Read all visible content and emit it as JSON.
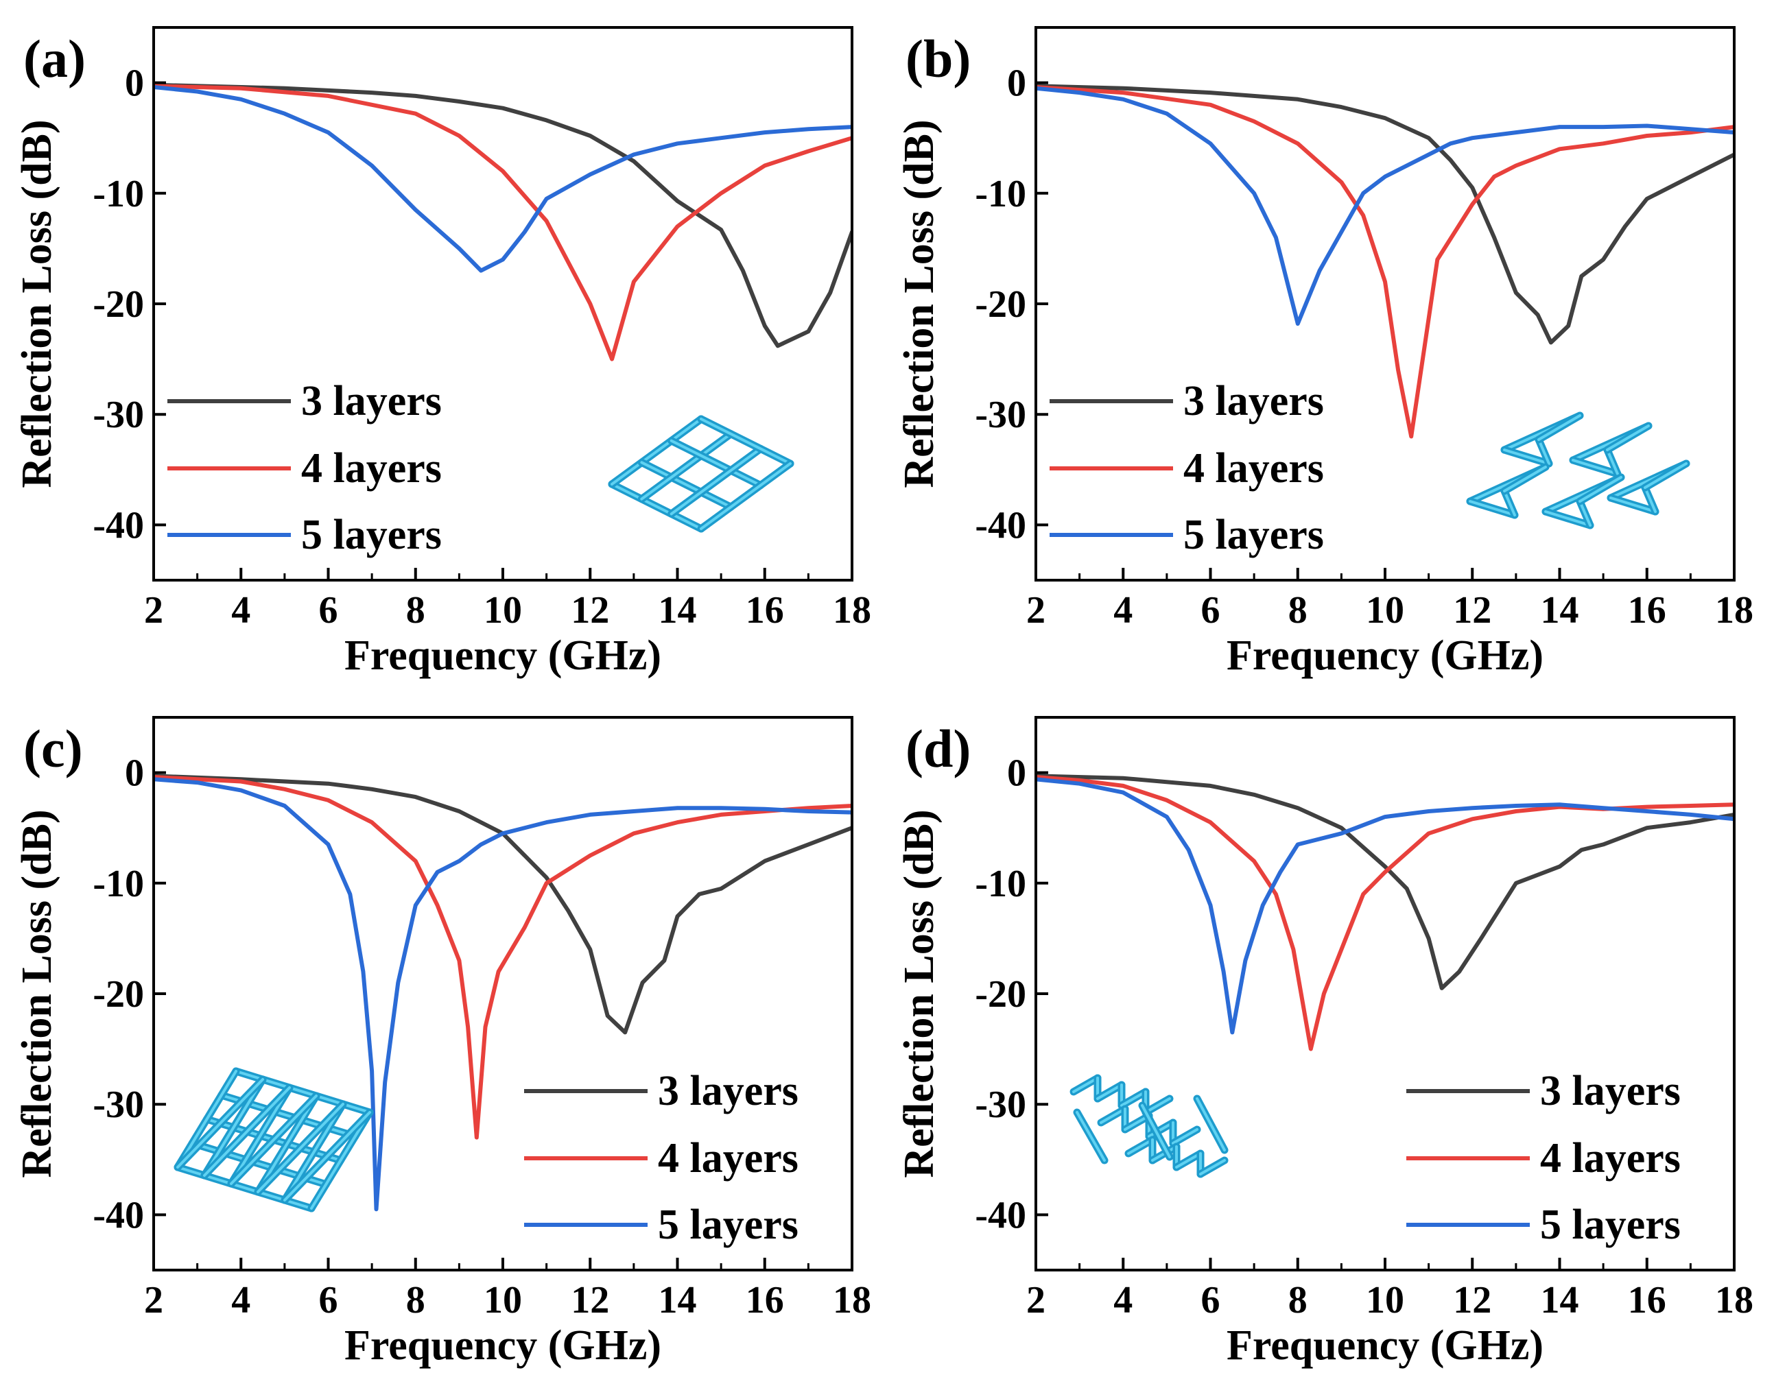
{
  "chart_data": [
    {
      "type": "line",
      "panel_label": "(a)",
      "xlabel": "Frequency (GHz)",
      "ylabel": "Reflection Loss (dB)",
      "xlim": [
        2,
        18
      ],
      "ylim": [
        -45,
        5
      ],
      "xticks": [
        2,
        4,
        6,
        8,
        10,
        12,
        14,
        16,
        18
      ],
      "yticks": [
        0,
        -10,
        -20,
        -30,
        -40
      ],
      "legend_position": "lower-left",
      "icon": "square-lattice-icon",
      "series": [
        {
          "name": "3 layers",
          "color": "#404040",
          "points": [
            [
              2,
              -0.2
            ],
            [
              3,
              -0.3
            ],
            [
              4,
              -0.4
            ],
            [
              5,
              -0.5
            ],
            [
              6,
              -0.7
            ],
            [
              7,
              -0.9
            ],
            [
              8,
              -1.2
            ],
            [
              9,
              -1.7
            ],
            [
              10,
              -2.3
            ],
            [
              11,
              -3.4
            ],
            [
              12,
              -4.8
            ],
            [
              13,
              -7.1
            ],
            [
              14,
              -10.7
            ],
            [
              15,
              -13.3
            ],
            [
              15.5,
              -17
            ],
            [
              16,
              -22
            ],
            [
              16.3,
              -23.8
            ],
            [
              17,
              -22.5
            ],
            [
              17.5,
              -19
            ],
            [
              18,
              -13.5
            ]
          ]
        },
        {
          "name": "4 layers",
          "color": "#e8413c",
          "points": [
            [
              2,
              -0.3
            ],
            [
              4,
              -0.5
            ],
            [
              6,
              -1.2
            ],
            [
              8,
              -2.8
            ],
            [
              9,
              -4.8
            ],
            [
              10,
              -8
            ],
            [
              11,
              -12.5
            ],
            [
              12,
              -20
            ],
            [
              12.5,
              -25
            ],
            [
              13,
              -18
            ],
            [
              14,
              -13
            ],
            [
              15,
              -10
            ],
            [
              16,
              -7.5
            ],
            [
              17,
              -6.2
            ],
            [
              18,
              -5
            ]
          ]
        },
        {
          "name": "5 layers",
          "color": "#2b6bd6",
          "points": [
            [
              2,
              -0.4
            ],
            [
              3,
              -0.8
            ],
            [
              4,
              -1.5
            ],
            [
              5,
              -2.8
            ],
            [
              6,
              -4.5
            ],
            [
              7,
              -7.5
            ],
            [
              8,
              -11.5
            ],
            [
              9,
              -15
            ],
            [
              9.5,
              -17
            ],
            [
              10,
              -16
            ],
            [
              10.5,
              -13.5
            ],
            [
              11,
              -10.5
            ],
            [
              12,
              -8.3
            ],
            [
              13,
              -6.5
            ],
            [
              14,
              -5.5
            ],
            [
              15,
              -5
            ],
            [
              16,
              -4.5
            ],
            [
              17,
              -4.2
            ],
            [
              18,
              -4
            ]
          ]
        }
      ]
    },
    {
      "type": "line",
      "panel_label": "(b)",
      "xlabel": "Frequency (GHz)",
      "ylabel": "Reflection Loss (dB)",
      "xlim": [
        2,
        18
      ],
      "ylim": [
        -45,
        5
      ],
      "xticks": [
        2,
        4,
        6,
        8,
        10,
        12,
        14,
        16,
        18
      ],
      "yticks": [
        0,
        -10,
        -20,
        -30,
        -40
      ],
      "legend_position": "lower-left",
      "icon": "arrowhead-lattice-icon",
      "series": [
        {
          "name": "3 layers",
          "color": "#404040",
          "points": [
            [
              2,
              -0.3
            ],
            [
              4,
              -0.5
            ],
            [
              6,
              -0.9
            ],
            [
              8,
              -1.5
            ],
            [
              9,
              -2.2
            ],
            [
              10,
              -3.2
            ],
            [
              11,
              -5
            ],
            [
              11.5,
              -7
            ],
            [
              12,
              -9.5
            ],
            [
              12.5,
              -14
            ],
            [
              13,
              -19
            ],
            [
              13.5,
              -21
            ],
            [
              13.8,
              -23.5
            ],
            [
              14.2,
              -22
            ],
            [
              14.5,
              -17.5
            ],
            [
              15,
              -16
            ],
            [
              15.5,
              -13
            ],
            [
              16,
              -10.5
            ],
            [
              17,
              -8.5
            ],
            [
              18,
              -6.5
            ]
          ]
        },
        {
          "name": "4 layers",
          "color": "#e8413c",
          "points": [
            [
              2,
              -0.4
            ],
            [
              4,
              -0.9
            ],
            [
              6,
              -2
            ],
            [
              7,
              -3.5
            ],
            [
              8,
              -5.5
            ],
            [
              9,
              -9
            ],
            [
              9.5,
              -12
            ],
            [
              10,
              -18
            ],
            [
              10.3,
              -26
            ],
            [
              10.6,
              -32
            ],
            [
              10.9,
              -24
            ],
            [
              11.2,
              -16
            ],
            [
              12,
              -11
            ],
            [
              12.5,
              -8.5
            ],
            [
              13,
              -7.5
            ],
            [
              14,
              -6
            ],
            [
              15,
              -5.5
            ],
            [
              16,
              -4.8
            ],
            [
              17,
              -4.5
            ],
            [
              18,
              -4
            ]
          ]
        },
        {
          "name": "5 layers",
          "color": "#2b6bd6",
          "points": [
            [
              2,
              -0.5
            ],
            [
              3,
              -0.9
            ],
            [
              4,
              -1.5
            ],
            [
              5,
              -2.8
            ],
            [
              6,
              -5.5
            ],
            [
              7,
              -10
            ],
            [
              7.5,
              -14
            ],
            [
              8,
              -21.8
            ],
            [
              8.5,
              -17
            ],
            [
              9,
              -13.5
            ],
            [
              9.5,
              -10
            ],
            [
              10,
              -8.5
            ],
            [
              11,
              -6.5
            ],
            [
              11.5,
              -5.5
            ],
            [
              12,
              -5
            ],
            [
              13,
              -4.5
            ],
            [
              14,
              -4
            ],
            [
              15,
              -4
            ],
            [
              16,
              -3.9
            ],
            [
              17,
              -4.2
            ],
            [
              18,
              -4.5
            ]
          ]
        }
      ]
    },
    {
      "type": "line",
      "panel_label": "(c)",
      "xlabel": "Frequency (GHz)",
      "ylabel": "Reflection Loss (dB)",
      "xlim": [
        2,
        18
      ],
      "ylim": [
        -45,
        5
      ],
      "xticks": [
        2,
        4,
        6,
        8,
        10,
        12,
        14,
        16,
        18
      ],
      "yticks": [
        0,
        -10,
        -20,
        -30,
        -40
      ],
      "legend_position": "lower-right",
      "icon": "truss-lattice-icon",
      "series": [
        {
          "name": "3 layers",
          "color": "#404040",
          "points": [
            [
              2,
              -0.3
            ],
            [
              4,
              -0.6
            ],
            [
              6,
              -1
            ],
            [
              7,
              -1.5
            ],
            [
              8,
              -2.2
            ],
            [
              9,
              -3.5
            ],
            [
              10,
              -5.5
            ],
            [
              11,
              -9.5
            ],
            [
              11.5,
              -12.5
            ],
            [
              12,
              -16
            ],
            [
              12.4,
              -22
            ],
            [
              12.8,
              -23.5
            ],
            [
              13.2,
              -19
            ],
            [
              13.7,
              -17
            ],
            [
              14,
              -13
            ],
            [
              14.5,
              -11
            ],
            [
              15,
              -10.5
            ],
            [
              16,
              -8
            ],
            [
              17,
              -6.5
            ],
            [
              18,
              -5
            ]
          ]
        },
        {
          "name": "4 layers",
          "color": "#e8413c",
          "points": [
            [
              2,
              -0.4
            ],
            [
              4,
              -0.8
            ],
            [
              5,
              -1.5
            ],
            [
              6,
              -2.5
            ],
            [
              7,
              -4.5
            ],
            [
              8,
              -8
            ],
            [
              8.5,
              -12
            ],
            [
              9,
              -17
            ],
            [
              9.2,
              -23
            ],
            [
              9.4,
              -33
            ],
            [
              9.6,
              -23
            ],
            [
              9.9,
              -18
            ],
            [
              10.5,
              -14
            ],
            [
              11,
              -10
            ],
            [
              12,
              -7.5
            ],
            [
              13,
              -5.5
            ],
            [
              14,
              -4.5
            ],
            [
              15,
              -3.8
            ],
            [
              16,
              -3.5
            ],
            [
              17,
              -3.2
            ],
            [
              18,
              -3
            ]
          ]
        },
        {
          "name": "5 layers",
          "color": "#2b6bd6",
          "points": [
            [
              2,
              -0.6
            ],
            [
              3,
              -0.9
            ],
            [
              4,
              -1.6
            ],
            [
              5,
              -3
            ],
            [
              6,
              -6.5
            ],
            [
              6.5,
              -11
            ],
            [
              6.8,
              -18
            ],
            [
              7.0,
              -27
            ],
            [
              7.1,
              -39.5
            ],
            [
              7.3,
              -28
            ],
            [
              7.6,
              -19
            ],
            [
              8,
              -12
            ],
            [
              8.5,
              -9
            ],
            [
              9,
              -8
            ],
            [
              9.5,
              -6.5
            ],
            [
              10,
              -5.5
            ],
            [
              11,
              -4.5
            ],
            [
              12,
              -3.8
            ],
            [
              13,
              -3.5
            ],
            [
              14,
              -3.2
            ],
            [
              15,
              -3.2
            ],
            [
              16,
              -3.3
            ],
            [
              17,
              -3.5
            ],
            [
              18,
              -3.6
            ]
          ]
        }
      ]
    },
    {
      "type": "line",
      "panel_label": "(d)",
      "xlabel": "Frequency (GHz)",
      "ylabel": "Reflection Loss (dB)",
      "xlim": [
        2,
        18
      ],
      "ylim": [
        -45,
        5
      ],
      "xticks": [
        2,
        4,
        6,
        8,
        10,
        12,
        14,
        16,
        18
      ],
      "yticks": [
        0,
        -10,
        -20,
        -30,
        -40
      ],
      "legend_position": "lower-right",
      "icon": "zigzag-lattice-icon",
      "series": [
        {
          "name": "3 layers",
          "color": "#404040",
          "points": [
            [
              2,
              -0.3
            ],
            [
              4,
              -0.5
            ],
            [
              6,
              -1.2
            ],
            [
              7,
              -2
            ],
            [
              8,
              -3.2
            ],
            [
              9,
              -5
            ],
            [
              10,
              -8.5
            ],
            [
              10.5,
              -10.5
            ],
            [
              11,
              -15
            ],
            [
              11.3,
              -19.5
            ],
            [
              11.7,
              -18
            ],
            [
              12.2,
              -15
            ],
            [
              13,
              -10
            ],
            [
              14,
              -8.5
            ],
            [
              14.5,
              -7
            ],
            [
              15,
              -6.5
            ],
            [
              16,
              -5
            ],
            [
              17,
              -4.5
            ],
            [
              18,
              -3.8
            ]
          ]
        },
        {
          "name": "4 layers",
          "color": "#e8413c",
          "points": [
            [
              2,
              -0.4
            ],
            [
              3,
              -0.7
            ],
            [
              4,
              -1.2
            ],
            [
              5,
              -2.5
            ],
            [
              6,
              -4.5
            ],
            [
              7,
              -8
            ],
            [
              7.5,
              -11
            ],
            [
              7.9,
              -16
            ],
            [
              8.3,
              -25
            ],
            [
              8.6,
              -20
            ],
            [
              9,
              -16
            ],
            [
              9.5,
              -11
            ],
            [
              10,
              -9
            ],
            [
              11,
              -5.5
            ],
            [
              12,
              -4.2
            ],
            [
              13,
              -3.5
            ],
            [
              14,
              -3.1
            ],
            [
              15,
              -3.3
            ],
            [
              16,
              -3.1
            ],
            [
              17,
              -3
            ],
            [
              18,
              -2.9
            ]
          ]
        },
        {
          "name": "5 layers",
          "color": "#2b6bd6",
          "points": [
            [
              2,
              -0.6
            ],
            [
              3,
              -1
            ],
            [
              4,
              -1.8
            ],
            [
              5,
              -4
            ],
            [
              5.5,
              -7
            ],
            [
              6,
              -12
            ],
            [
              6.3,
              -18
            ],
            [
              6.5,
              -23.5
            ],
            [
              6.8,
              -17
            ],
            [
              7.2,
              -12
            ],
            [
              7.6,
              -9
            ],
            [
              8,
              -6.5
            ],
            [
              9,
              -5.5
            ],
            [
              10,
              -4
            ],
            [
              11,
              -3.5
            ],
            [
              12,
              -3.2
            ],
            [
              13,
              -3
            ],
            [
              14,
              -2.9
            ],
            [
              15,
              -3.2
            ],
            [
              16,
              -3.5
            ],
            [
              17,
              -3.8
            ],
            [
              18,
              -4.2
            ]
          ]
        }
      ]
    }
  ]
}
